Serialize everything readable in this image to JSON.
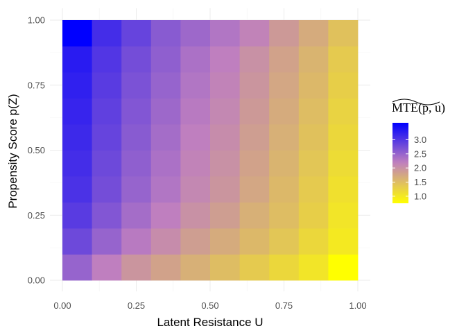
{
  "chart_data": {
    "type": "heatmap",
    "xlabel": "Latent Resistance U",
    "ylabel": "Propensity Score p(Z)",
    "xlim": [
      0,
      1
    ],
    "ylim": [
      0,
      1
    ],
    "x_ticks": [
      "0.00",
      "0.25",
      "0.50",
      "0.75",
      "1.00"
    ],
    "y_ticks": [
      "0.00",
      "0.25",
      "0.50",
      "0.75",
      "1.00"
    ],
    "x": [
      0.05,
      0.15,
      0.25,
      0.35,
      0.45,
      0.55,
      0.65,
      0.75,
      0.85,
      0.95
    ],
    "y": [
      0.05,
      0.15,
      0.25,
      0.35,
      0.45,
      0.55,
      0.65,
      0.75,
      0.85,
      0.95
    ],
    "values": [
      [
        2.5,
        2.2,
        1.95,
        1.8,
        1.65,
        1.5,
        1.35,
        1.2,
        1.05,
        0.75
      ],
      [
        2.8,
        2.5,
        2.25,
        2.05,
        1.85,
        1.7,
        1.55,
        1.4,
        1.2,
        1.0
      ],
      [
        2.95,
        2.65,
        2.4,
        2.2,
        2.0,
        1.85,
        1.65,
        1.5,
        1.3,
        1.05
      ],
      [
        3.05,
        2.75,
        2.5,
        2.3,
        2.1,
        1.95,
        1.75,
        1.55,
        1.35,
        1.1
      ],
      [
        3.1,
        2.8,
        2.55,
        2.35,
        2.15,
        2.0,
        1.8,
        1.6,
        1.4,
        1.15
      ],
      [
        3.15,
        2.85,
        2.6,
        2.4,
        2.2,
        2.05,
        1.85,
        1.65,
        1.45,
        1.2
      ],
      [
        3.2,
        2.9,
        2.65,
        2.45,
        2.25,
        2.1,
        1.9,
        1.7,
        1.5,
        1.25
      ],
      [
        3.25,
        2.95,
        2.7,
        2.5,
        2.3,
        2.15,
        1.95,
        1.75,
        1.55,
        1.3
      ],
      [
        3.3,
        3.0,
        2.75,
        2.55,
        2.35,
        2.2,
        2.0,
        1.8,
        1.6,
        1.35
      ],
      [
        3.6,
        3.1,
        2.85,
        2.6,
        2.45,
        2.3,
        2.15,
        1.9,
        1.7,
        1.45
      ]
    ],
    "grid": true,
    "legend": {
      "title": "MTE(p, u)",
      "placement": "right",
      "ticks": [
        "1.0",
        "1.5",
        "2.0",
        "2.5",
        "3.0"
      ],
      "tick_values": [
        1.0,
        1.5,
        2.0,
        2.5,
        3.0
      ],
      "range": [
        0.75,
        3.6
      ]
    },
    "colors": {
      "low": "#ffff00",
      "mid": "#bf7fbf",
      "high": "#0000ff",
      "mid_value": 2.2
    }
  }
}
